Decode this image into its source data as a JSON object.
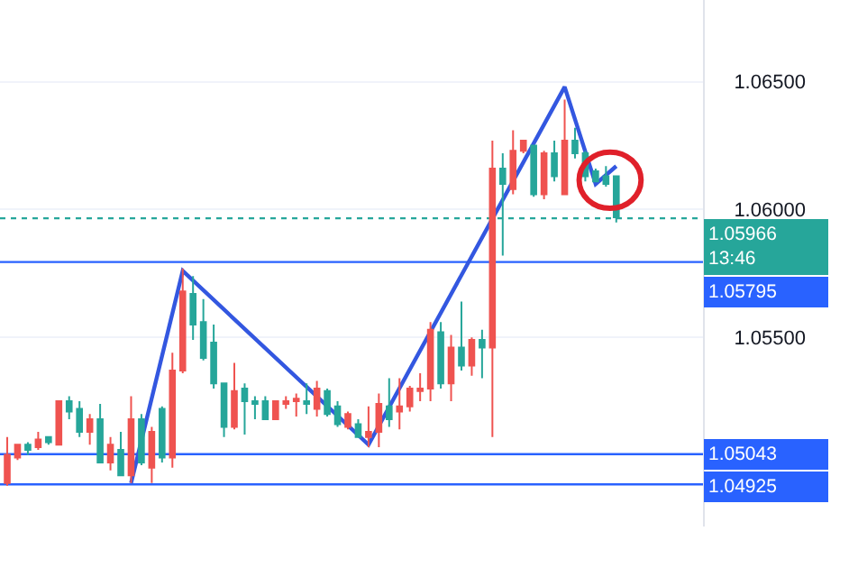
{
  "chart_data": {
    "type": "candlestick",
    "categories": [
      null,
      null,
      null,
      null,
      null,
      null,
      null,
      null,
      null,
      null,
      null,
      null,
      null,
      null,
      null,
      null,
      null,
      null,
      null,
      null,
      null,
      null,
      null,
      null,
      null,
      null,
      null,
      null,
      null,
      null,
      null,
      null,
      null,
      null,
      null,
      null,
      null,
      null,
      null,
      null,
      null,
      null,
      null,
      null,
      null,
      null,
      null,
      null,
      null,
      null,
      null,
      null,
      null,
      null,
      null,
      null,
      null,
      null,
      null,
      null,
      null,
      null,
      null,
      null,
      null,
      null,
      null,
      null
    ],
    "series": [
      {
        "ohlc": [
          [
            1.0493,
            1.0511,
            1.0492,
            1.0504
          ],
          [
            1.0503,
            1.0508,
            1.0502,
            1.0508
          ],
          [
            1.0508,
            1.0509,
            1.0504,
            1.0506
          ],
          [
            1.0507,
            1.0513,
            1.0506,
            1.051
          ],
          [
            1.0511,
            1.0511,
            1.0508,
            1.0509
          ],
          [
            1.0508,
            1.0525,
            1.0508,
            1.0525
          ],
          [
            1.0525,
            1.0527,
            1.0518,
            1.0521
          ],
          [
            1.0522,
            1.0525,
            1.0511,
            1.0513
          ],
          [
            1.0513,
            1.052,
            1.0508,
            1.0518
          ],
          [
            1.0518,
            1.0524,
            1.0501,
            1.0501
          ],
          [
            1.0501,
            1.0511,
            1.0498,
            1.0508
          ],
          [
            1.0506,
            1.0513,
            1.0496,
            1.0496
          ],
          [
            1.0496,
            1.0527,
            1.0493,
            1.0518
          ],
          [
            1.0518,
            1.052,
            1.05,
            1.0501
          ],
          [
            1.0499,
            1.0515,
            1.0493,
            1.0513
          ],
          [
            1.0522,
            1.0523,
            1.0501,
            1.0503
          ],
          [
            1.0503,
            1.0544,
            1.0499,
            1.0537
          ],
          [
            1.0537,
            1.0577,
            1.0536,
            1.0568
          ],
          [
            1.0567,
            1.0574,
            1.0549,
            1.0555
          ],
          [
            1.0556,
            1.0565,
            1.0541,
            1.0542
          ],
          [
            1.0548,
            1.0555,
            1.053,
            1.0532
          ],
          [
            1.0532,
            1.0532,
            1.0511,
            1.0515
          ],
          [
            1.0515,
            1.054,
            1.0514,
            1.0529
          ],
          [
            1.053,
            1.0532,
            1.0512,
            1.0525
          ],
          [
            1.0525,
            1.0527,
            1.0518,
            1.0524
          ],
          [
            1.0525,
            1.0527,
            1.0518,
            1.0518
          ],
          [
            1.0518,
            1.0525,
            1.0518,
            1.0525
          ],
          [
            1.0524,
            1.0527,
            1.0522,
            1.0525
          ],
          [
            1.0525,
            1.0528,
            1.0519,
            1.0526
          ],
          [
            1.0525,
            1.0532,
            1.052,
            1.0524
          ],
          [
            1.0522,
            1.0533,
            1.0519,
            1.053
          ],
          [
            1.0529,
            1.053,
            1.0519,
            1.052
          ],
          [
            1.0523,
            1.0525,
            1.0515,
            1.0516
          ],
          [
            1.0515,
            1.0521,
            1.0514,
            1.052
          ],
          [
            1.0516,
            1.0518,
            1.0511,
            1.0511
          ],
          [
            1.0511,
            1.0523,
            1.0507,
            1.0513
          ],
          [
            1.0513,
            1.0528,
            1.0507,
            1.0524
          ],
          [
            1.0523,
            1.0534,
            1.0515,
            1.0518
          ],
          [
            1.0521,
            1.0534,
            1.0514,
            1.0523
          ],
          [
            1.0523,
            1.0531,
            1.0521,
            1.053
          ],
          [
            1.0529,
            1.0536,
            1.0525,
            1.053
          ],
          [
            1.053,
            1.0556,
            1.0525,
            1.0553
          ],
          [
            1.0552,
            1.0556,
            1.053,
            1.0532
          ],
          [
            1.0532,
            1.0551,
            1.0525,
            1.0546
          ],
          [
            1.0546,
            1.0564,
            1.0537,
            1.0539
          ],
          [
            1.0539,
            1.055,
            1.0535,
            1.0549
          ],
          [
            1.0549,
            1.0553,
            1.0534,
            1.0546
          ],
          [
            1.0546,
            1.0627,
            1.0511,
            1.0616
          ],
          [
            1.0616,
            1.0622,
            1.0582,
            1.061
          ],
          [
            1.0608,
            1.0631,
            1.0606,
            1.0623
          ],
          [
            1.0623,
            1.0627,
            1.0622,
            1.0627
          ],
          [
            1.0625,
            1.0625,
            1.0605,
            1.0606
          ],
          [
            1.0606,
            1.0623,
            1.0604,
            1.0622
          ],
          [
            1.0622,
            1.0627,
            1.0611,
            1.0613
          ],
          [
            1.0606,
            1.0643,
            1.0606,
            1.0627
          ],
          [
            1.0627,
            1.0632,
            1.062,
            1.0622
          ],
          [
            1.0622,
            1.0623,
            1.0611,
            1.0613
          ],
          [
            1.0615,
            1.0616,
            1.0611,
            1.0611
          ],
          [
            1.0613,
            1.0617,
            1.0609,
            1.061
          ],
          [
            1.0613,
            1.0613,
            1.0595,
            1.0597
          ],
          null,
          null,
          null,
          null,
          null,
          null,
          null,
          null
        ],
        "colors": [
          "#ef5350",
          "#ef5350",
          "#26a69a",
          "#ef5350",
          "#26a69a",
          "#ef5350",
          "#26a69a",
          "#26a69a",
          "#ef5350",
          "#26a69a",
          "#ef5350",
          "#26a69a",
          "#ef5350",
          "#26a69a",
          "#ef5350",
          "#26a69a",
          "#ef5350",
          "#ef5350",
          "#26a69a",
          "#26a69a",
          "#26a69a",
          "#26a69a",
          "#ef5350",
          "#26a69a",
          "#26a69a",
          "#26a69a",
          "#ef5350",
          "#ef5350",
          "#ef5350",
          "#26a69a",
          "#ef5350",
          "#26a69a",
          "#26a69a",
          "#ef5350",
          "#26a69a",
          "#ef5350",
          "#ef5350",
          "#26a69a",
          "#ef5350",
          "#ef5350",
          "#ef5350",
          "#ef5350",
          "#26a69a",
          "#ef5350",
          "#26a69a",
          "#ef5350",
          "#26a69a",
          "#ef5350",
          "#26a69a",
          "#ef5350",
          "#ef5350",
          "#26a69a",
          "#ef5350",
          "#26a69a",
          "#ef5350",
          "#26a69a",
          "#26a69a",
          "#26a69a",
          "#26a69a",
          "#26a69a",
          null,
          null,
          null,
          null,
          null,
          null,
          null,
          null
        ]
      },
      {
        "type": "line",
        "color": "#3357e0",
        "values": [
          null,
          null,
          null,
          null,
          null,
          null,
          null,
          null,
          null,
          null,
          null,
          null,
          1.0493,
          null,
          null,
          null,
          null,
          1.0576,
          null,
          null,
          null,
          null,
          null,
          null,
          null,
          null,
          null,
          null,
          null,
          null,
          null,
          null,
          null,
          null,
          null,
          1.0508,
          null,
          null,
          null,
          null,
          null,
          null,
          null,
          null,
          null,
          null,
          null,
          null,
          null,
          null,
          null,
          null,
          null,
          null,
          1.0648,
          null,
          null,
          1.061,
          null,
          1.0617,
          null,
          null,
          null,
          null,
          null,
          null,
          null,
          null
        ]
      }
    ],
    "ylim": [
      1.0476,
      1.0682
    ],
    "yticks": [
      {
        "value": 1.065,
        "label": "1.06500"
      },
      {
        "value": 1.06,
        "label": "1.06000"
      },
      {
        "value": 1.055,
        "label": "1.05500"
      }
    ],
    "grid": "y",
    "ref_lines": [
      {
        "axis": "y",
        "value": 1.05966,
        "label": "1.05966\n13:46",
        "color": "#26a69a",
        "line_style": "dotted"
      },
      {
        "axis": "y",
        "value": 1.05795,
        "label": "1.05795",
        "color": "#2962ff",
        "line_style": "solid"
      },
      {
        "axis": "y",
        "value": 1.05043,
        "label": "1.05043",
        "color": "#2962ff",
        "line_style": "solid"
      },
      {
        "axis": "y",
        "value": 1.04925,
        "label": "1.04925",
        "color": "#2962ff",
        "line_style": "solid"
      }
    ]
  }
}
